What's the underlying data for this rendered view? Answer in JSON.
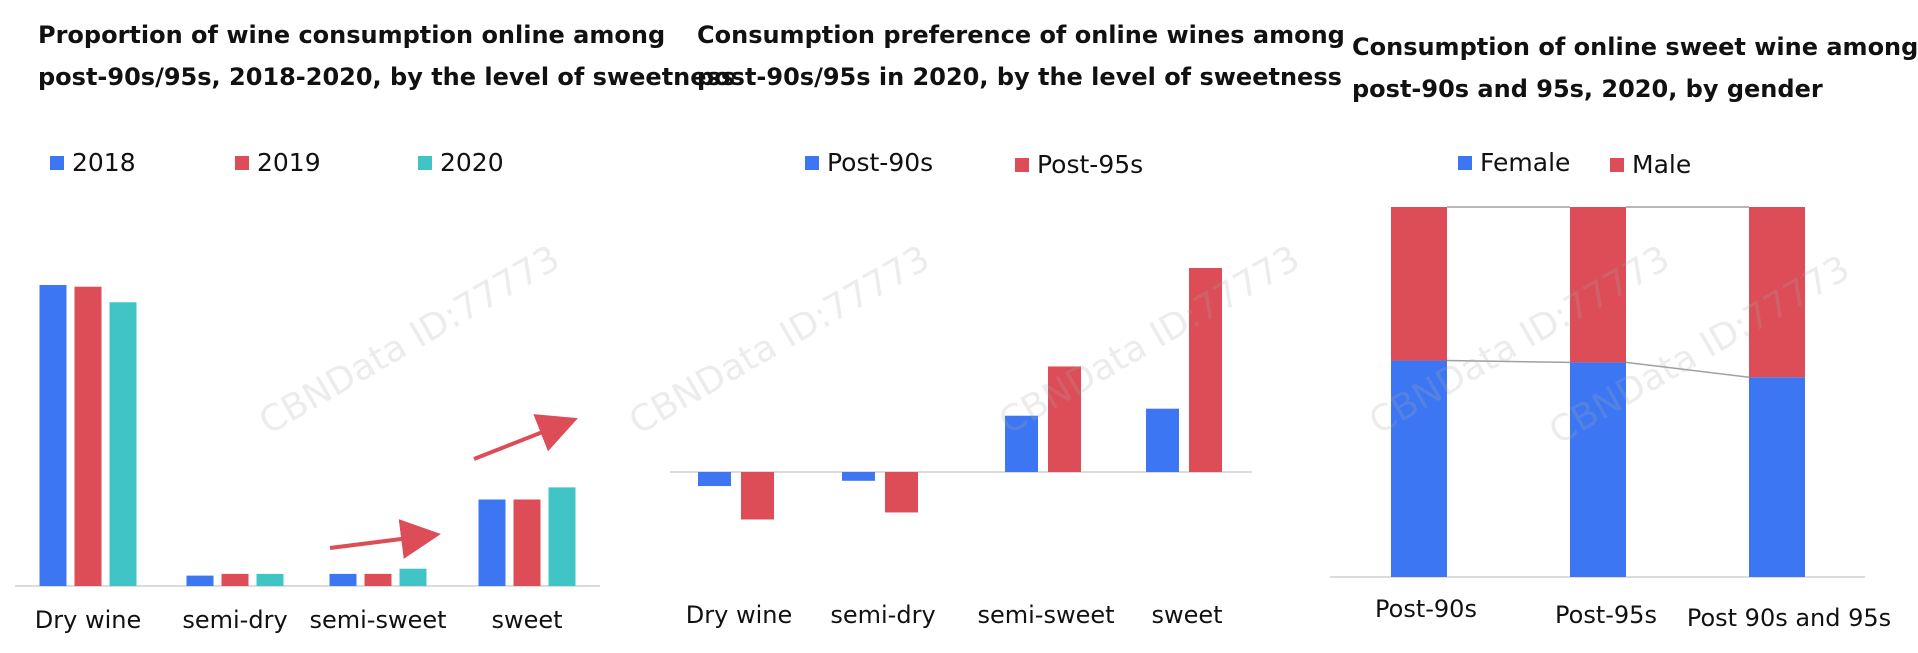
{
  "colors": {
    "blue": "#3d76f3",
    "red": "#dc4d58",
    "teal": "#41c4c5",
    "axis": "#d0d0d0",
    "connector": "#a0a0a0",
    "arrow": "#dc4d58",
    "text": "#111111"
  },
  "watermark": "CBNData ID:77773",
  "chart_data": [
    {
      "type": "bar",
      "title_line1": "Proportion of wine consumption online among",
      "title_line2": "post-90s/95s, 2018-2020, by the level of sweetness",
      "categories": [
        "Dry wine",
        "semi-dry",
        "semi-sweet",
        "sweet"
      ],
      "series": [
        {
          "name": "2018",
          "values": [
            87,
            3,
            3.5,
            25
          ]
        },
        {
          "name": "2019",
          "values": [
            86.5,
            3.5,
            3.5,
            25
          ]
        },
        {
          "name": "2020",
          "values": [
            82,
            3.5,
            5,
            28.5
          ]
        }
      ],
      "ylim": [
        0,
        100
      ],
      "legend": "top",
      "grid": false,
      "annotations": [
        "upward trend arrow over semi-sweet",
        "upward trend arrow over sweet"
      ]
    },
    {
      "type": "bar",
      "title_line1": "Consumption preference of online wines among",
      "title_line2": "post-90s/95s in 2020, by the level of sweetness",
      "categories": [
        "Dry wine",
        "semi-dry",
        "semi-sweet",
        "sweet"
      ],
      "series": [
        {
          "name": "Post-90s",
          "values": [
            -4,
            -2.5,
            16,
            18
          ]
        },
        {
          "name": "Post-95s",
          "values": [
            -13.5,
            -11.5,
            30,
            58
          ]
        }
      ],
      "ylim": [
        -20,
        70
      ],
      "legend": "top",
      "grid": false
    },
    {
      "type": "bar",
      "stacked": true,
      "percent": true,
      "title_line1": "Consumption of online sweet wine among",
      "title_line2": "post-90s and 95s, 2020, by gender",
      "categories": [
        "Post-90s",
        "Post-95s",
        "Post 90s and 95s"
      ],
      "series": [
        {
          "name": "Female",
          "values": [
            58.5,
            58,
            54
          ]
        },
        {
          "name": "Male",
          "values": [
            41.5,
            42,
            46
          ]
        }
      ],
      "ylim": [
        0,
        100
      ],
      "legend": "top",
      "grid": false
    }
  ]
}
